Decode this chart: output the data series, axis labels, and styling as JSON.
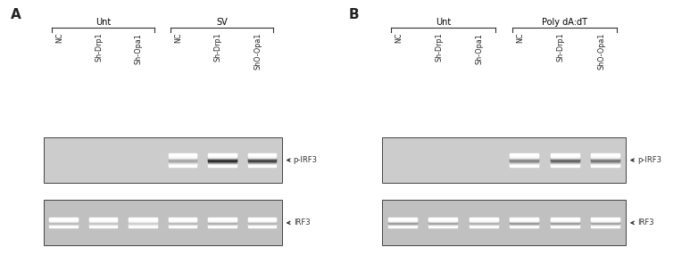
{
  "panel_A_label": "A",
  "panel_B_label": "B",
  "panel_A_group1_label": "Unt",
  "panel_A_group2_label": "SV",
  "panel_B_group1_label": "Unt",
  "panel_B_group2_label": "Poly dA:dT",
  "lane_labels": [
    "NC",
    "Sh-Drp1",
    "Sh-Opa1",
    "NC",
    "Sh-Drp1",
    "ShO-Opa1"
  ],
  "label_color_group": "#000000",
  "bg_color": "#ffffff",
  "blot_bg_upper": "#cccccc",
  "blot_bg_lower": "#c0c0c0",
  "panel_A_pIRF3_bands": [
    0,
    0,
    0,
    0.4,
    0.95,
    0.85
  ],
  "panel_A_IRF3_bands": [
    0.55,
    0.45,
    0.38,
    0.55,
    0.62,
    0.58
  ],
  "panel_B_pIRF3_bands": [
    0,
    0,
    0,
    0.55,
    0.7,
    0.62
  ],
  "panel_B_IRF3_bands": [
    0.78,
    0.72,
    0.62,
    0.82,
    0.78,
    0.72
  ],
  "arrow_label_pIRF3": "p-IRF3",
  "arrow_label_IRF3": "IRF3",
  "blot_box_color": "#444444",
  "band_color_dark": "#111111",
  "band_color_light": "#888888"
}
